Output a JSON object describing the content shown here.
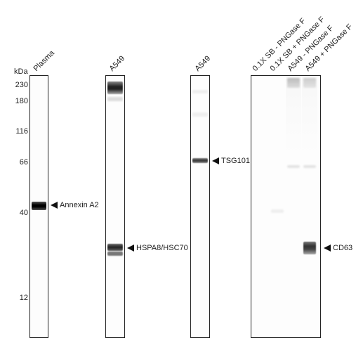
{
  "axis": {
    "unit": "kDa",
    "markers": [
      "230",
      "180",
      "116",
      "66",
      "40",
      "12"
    ]
  },
  "lanes": {
    "plasma": "Plasma",
    "a549_1": "A549",
    "a549_2": "A549",
    "cd63_lanes": [
      "0.1X SB - PNGase F",
      "0.1X SB + PNGase F",
      "A549 - PNGase F",
      "A549 + PNGase F"
    ]
  },
  "annotations": {
    "annexin": "Annexin A2",
    "hspa8": "HSPA8/HSC70",
    "tsg101": "TSG101",
    "cd63": "CD63"
  }
}
